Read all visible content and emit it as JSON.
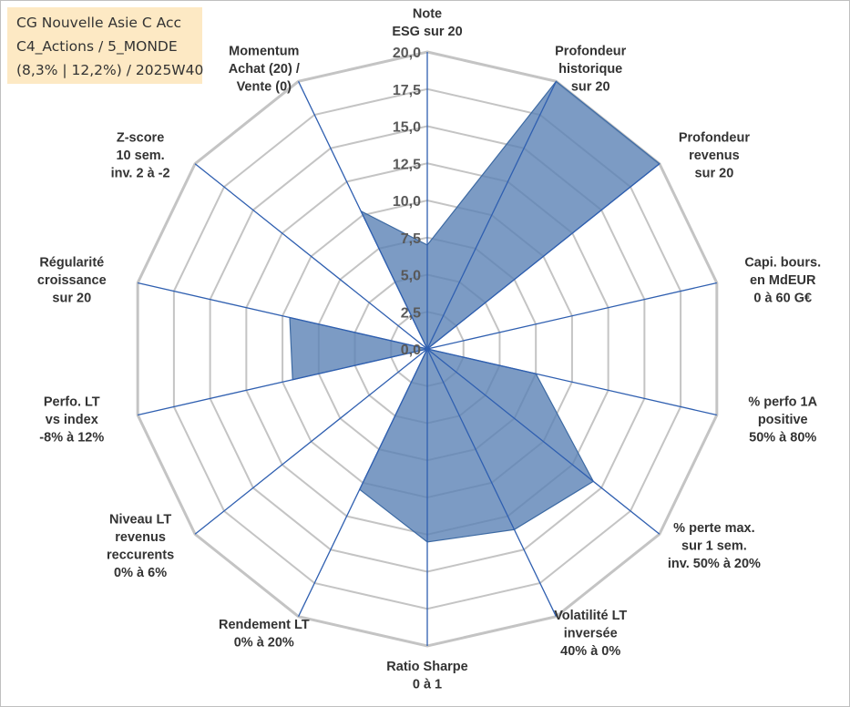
{
  "fund_box": {
    "line1": "CG Nouvelle Asie C Acc",
    "line2": "C4_Actions / 5_MONDE",
    "line3": "(8,3% | 12,2%) / 2025W40"
  },
  "colors": {
    "fill": "#5b82b5",
    "stroke": "#3d6aa3",
    "spoke": "#2f5fb0",
    "grid": "#c4c4c4"
  },
  "chart_data": {
    "type": "radar",
    "rmin": 0,
    "rmax": 20,
    "ticks": [
      "0,0",
      "2,5",
      "5,0",
      "7,5",
      "10,0",
      "12,5",
      "15,0",
      "17,5",
      "20,0"
    ],
    "grid": true,
    "axes": [
      {
        "label": [
          "Note",
          "ESG sur 20"
        ]
      },
      {
        "label": [
          "Profondeur",
          "historique",
          "sur 20"
        ]
      },
      {
        "label": [
          "Profondeur",
          "revenus",
          "sur 20"
        ]
      },
      {
        "label": [
          "Capi. bours.",
          "en MdEUR",
          "0 à 60 G€"
        ]
      },
      {
        "label": [
          "% perfo 1A",
          "positive",
          "50% à 80%"
        ]
      },
      {
        "label": [
          "% perte max.",
          "sur 1 sem.",
          "inv. 50% à 20%"
        ]
      },
      {
        "label": [
          "Volatilité LT",
          "inversée",
          "40% à 0%"
        ]
      },
      {
        "label": [
          "Ratio Sharpe",
          "0 à 1"
        ]
      },
      {
        "label": [
          "Rendement LT",
          "0% à 20%"
        ]
      },
      {
        "label": [
          "Niveau LT",
          "revenus",
          "reccurents",
          "0% à 6%"
        ]
      },
      {
        "label": [
          "Perfo. LT",
          "vs index",
          "-8% à 12%"
        ]
      },
      {
        "label": [
          "Régularité",
          "croissance",
          "sur 20"
        ]
      },
      {
        "label": [
          "Z-score",
          "10 sem.",
          "inv. 2 à -2"
        ]
      },
      {
        "label": [
          "Momentum",
          "Achat (20) /",
          "Vente (0)"
        ]
      }
    ],
    "series": [
      {
        "values": [
          7.0,
          20.0,
          20.0,
          0.0,
          7.5,
          14.3,
          13.5,
          13.0,
          10.5,
          0.0,
          9.3,
          9.5,
          0.0,
          10.3
        ]
      }
    ]
  }
}
